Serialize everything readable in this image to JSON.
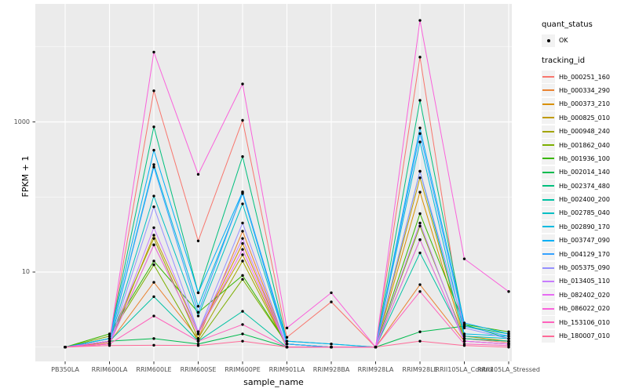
{
  "legend": {
    "quant_title": "quant_status",
    "ok_label": "OK",
    "tracking_title": "tracking_id"
  },
  "chart_data": {
    "type": "line",
    "title": "",
    "xlabel": "sample_name",
    "ylabel": "FPKM + 1",
    "yscale": "log10",
    "ytick_labels": [
      "1000",
      "10"
    ],
    "ytick_values": [
      1000,
      10
    ],
    "grid_major": [
      10,
      1000
    ],
    "grid_minor": [
      1,
      100,
      10000
    ],
    "ylim": [
      0.85,
      30000
    ],
    "legend_position": "right",
    "panel_bg": "#EBEBEB",
    "grid_color": "#FFFFFF",
    "marker_color": "#000000",
    "quant_status": "OK",
    "categories": [
      "PB350LA",
      "RRIM600LA",
      "RRIM600LE",
      "RRIM600SE",
      "RRIM600PE",
      "RRIM901LA",
      "RRIM928BA",
      "RRIM928LA",
      "RRIM928LE",
      "RRII105LA_Control",
      "RRII105LA_Stressed"
    ],
    "series": [
      {
        "name": "Hb_000251_160",
        "color": "#F8766D",
        "values": [
          1,
          1.2,
          2600,
          26,
          1050,
          1.35,
          4,
          1,
          7300,
          1.3,
          1.15
        ]
      },
      {
        "name": "Hb_000334_290",
        "color": "#EA8331",
        "values": [
          1,
          1.15,
          7.3,
          1.3,
          35,
          1,
          1,
          1,
          6.8,
          1.2,
          1.1
        ]
      },
      {
        "name": "Hb_000373_210",
        "color": "#D89000",
        "values": [
          1,
          1.1,
          23,
          1.5,
          24,
          1,
          1,
          1,
          116,
          1.3,
          1.2
        ]
      },
      {
        "name": "Hb_000825_010",
        "color": "#C09B00",
        "values": [
          1,
          1.1,
          31,
          1.6,
          17,
          1,
          1,
          1,
          180,
          1.4,
          1.2
        ]
      },
      {
        "name": "Hb_000948_240",
        "color": "#A3A500",
        "values": [
          1,
          1.3,
          28,
          1.3,
          14,
          1,
          1,
          1,
          27,
          1.2,
          1.1
        ]
      },
      {
        "name": "Hb_001862_040",
        "color": "#7CAE00",
        "values": [
          1,
          1.4,
          12.5,
          1.2,
          8,
          1.1,
          1,
          1,
          41,
          1.3,
          1.2
        ]
      },
      {
        "name": "Hb_001936_100",
        "color": "#39B600",
        "values": [
          1,
          1.5,
          14,
          2.9,
          9,
          1.1,
          1,
          1,
          60,
          2,
          1.6
        ]
      },
      {
        "name": "Hb_002014_140",
        "color": "#00BB4E",
        "values": [
          1,
          1.2,
          1.3,
          1.1,
          1.5,
          1,
          1,
          1,
          1.6,
          1.9,
          1.5
        ]
      },
      {
        "name": "Hb_002374_480",
        "color": "#00BF7D",
        "values": [
          1,
          1.3,
          860,
          5.3,
          345,
          1.2,
          1.1,
          1,
          1940,
          2,
          1.3
        ]
      },
      {
        "name": "Hb_002400_200",
        "color": "#00C1A3",
        "values": [
          1,
          1.2,
          4.7,
          1.2,
          3,
          1,
          1,
          1,
          18,
          1.3,
          1.2
        ]
      },
      {
        "name": "Hb_002785_040",
        "color": "#00BFC4",
        "values": [
          1,
          1.2,
          103,
          2.6,
          81,
          1.1,
          1,
          1,
          220,
          1.4,
          1.3
        ]
      },
      {
        "name": "Hb_002890_170",
        "color": "#00BAE0",
        "values": [
          1,
          1.2,
          270,
          3.5,
          111,
          1.1,
          1,
          1,
          540,
          1.5,
          1.4
        ]
      },
      {
        "name": "Hb_003747_090",
        "color": "#00B0F6",
        "values": [
          1,
          1.3,
          420,
          5.3,
          117,
          1.2,
          1.1,
          1,
          830,
          2.1,
          1.5
        ]
      },
      {
        "name": "Hb_004129_170",
        "color": "#35A2FF",
        "values": [
          1,
          1.2,
          250,
          2.9,
          115,
          1.1,
          1,
          1,
          700,
          1.9,
          1.4
        ]
      },
      {
        "name": "Hb_005375_090",
        "color": "#9590FF",
        "values": [
          1,
          1.1,
          74,
          1.6,
          45,
          1,
          1,
          1,
          220,
          1.8,
          1.3
        ]
      },
      {
        "name": "Hb_013405_110",
        "color": "#C77CFF",
        "values": [
          1,
          1.1,
          39,
          1.6,
          28,
          1,
          1,
          1,
          45,
          1.2,
          1.1
        ]
      },
      {
        "name": "Hb_082402_020",
        "color": "#E76BF3",
        "values": [
          1,
          1.1,
          23,
          1.5,
          20,
          1,
          1,
          1,
          27,
          1.2,
          1.1
        ]
      },
      {
        "name": "Hb_086022_020",
        "color": "#FA62DB",
        "values": [
          1,
          1.2,
          8500,
          200,
          3200,
          1.8,
          5.3,
          1,
          22500,
          15,
          5.5
        ]
      },
      {
        "name": "Hb_153106_010",
        "color": "#FF62BC",
        "values": [
          1,
          1.1,
          2.6,
          1.2,
          2,
          1,
          1,
          1,
          5.5,
          1.1,
          1.05
        ]
      },
      {
        "name": "Hb_180007_010",
        "color": "#FF6A98",
        "values": [
          1,
          1.05,
          1.06,
          1.05,
          1.2,
          1,
          1,
          1,
          1.2,
          1.05,
          1
        ]
      }
    ]
  }
}
